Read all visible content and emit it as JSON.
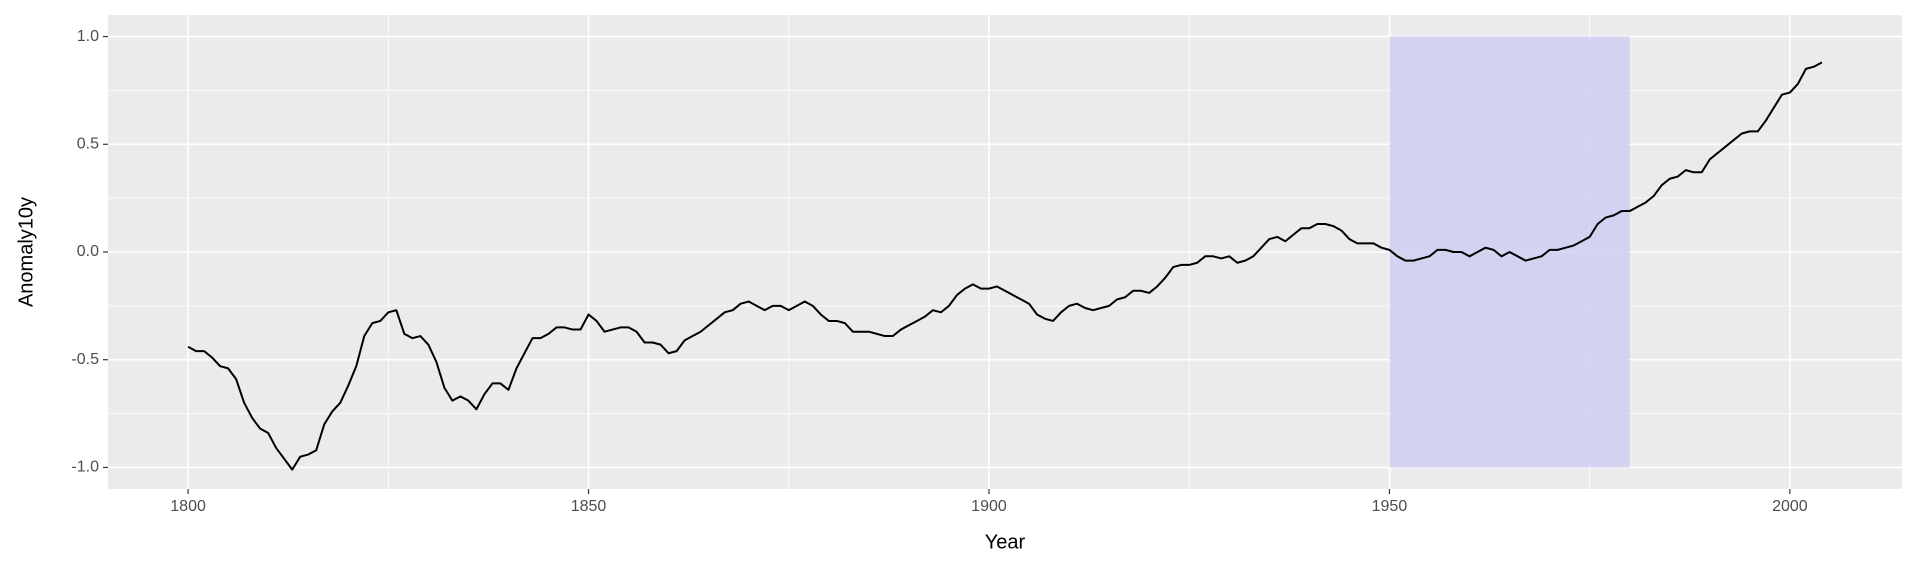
{
  "chart_data": {
    "type": "line",
    "x_label": "Year",
    "y_label": "Anomaly10y",
    "xlim": [
      1790,
      2014
    ],
    "ylim": [
      -1.1,
      1.1
    ],
    "xticks": [
      1800,
      1850,
      1900,
      1950,
      2000
    ],
    "yticks": [
      {
        "value": -1,
        "label": "-1.0"
      },
      {
        "value": -0.5,
        "label": "-0.5"
      },
      {
        "value": 0,
        "label": "0.0"
      },
      {
        "value": 0.5,
        "label": "0.5"
      },
      {
        "value": 1,
        "label": "1.0"
      }
    ],
    "grid": true,
    "panel_color": "#ebebeb",
    "shade": {
      "xmin": 1950,
      "xmax": 1980,
      "ymin": -1,
      "ymax": 1,
      "color": "#ccccf2"
    },
    "series": [
      {
        "color": "#000000",
        "x": [
          1800,
          1801,
          1802,
          1803,
          1804,
          1805,
          1806,
          1807,
          1808,
          1809,
          1810,
          1811,
          1812,
          1813,
          1814,
          1815,
          1816,
          1817,
          1818,
          1819,
          1820,
          1821,
          1822,
          1823,
          1824,
          1825,
          1826,
          1827,
          1828,
          1829,
          1830,
          1831,
          1832,
          1833,
          1834,
          1835,
          1836,
          1837,
          1838,
          1839,
          1840,
          1841,
          1842,
          1843,
          1844,
          1845,
          1846,
          1847,
          1848,
          1849,
          1850,
          1851,
          1852,
          1853,
          1854,
          1855,
          1856,
          1857,
          1858,
          1859,
          1860,
          1861,
          1862,
          1863,
          1864,
          1865,
          1866,
          1867,
          1868,
          1869,
          1870,
          1871,
          1872,
          1873,
          1874,
          1875,
          1876,
          1877,
          1878,
          1879,
          1880,
          1881,
          1882,
          1883,
          1884,
          1885,
          1886,
          1887,
          1888,
          1889,
          1890,
          1891,
          1892,
          1893,
          1894,
          1895,
          1896,
          1897,
          1898,
          1899,
          1900,
          1901,
          1902,
          1903,
          1904,
          1905,
          1906,
          1907,
          1908,
          1909,
          1910,
          1911,
          1912,
          1913,
          1914,
          1915,
          1916,
          1917,
          1918,
          1919,
          1920,
          1921,
          1922,
          1923,
          1924,
          1925,
          1926,
          1927,
          1928,
          1929,
          1930,
          1931,
          1932,
          1933,
          1934,
          1935,
          1936,
          1937,
          1938,
          1939,
          1940,
          1941,
          1942,
          1943,
          1944,
          1945,
          1946,
          1947,
          1948,
          1949,
          1950,
          1951,
          1952,
          1953,
          1954,
          1955,
          1956,
          1957,
          1958,
          1959,
          1960,
          1961,
          1962,
          1963,
          1964,
          1965,
          1966,
          1967,
          1968,
          1969,
          1970,
          1971,
          1972,
          1973,
          1974,
          1975,
          1976,
          1977,
          1978,
          1979,
          1980,
          1981,
          1982,
          1983,
          1984,
          1985,
          1986,
          1987,
          1988,
          1989,
          1990,
          1991,
          1992,
          1993,
          1994,
          1995,
          1996,
          1997,
          1998,
          1999,
          2000,
          2001,
          2002,
          2003,
          2004
        ],
        "values": [
          -0.44,
          -0.46,
          -0.46,
          -0.49,
          -0.53,
          -0.54,
          -0.59,
          -0.7,
          -0.77,
          -0.82,
          -0.84,
          -0.91,
          -0.96,
          -1.01,
          -0.95,
          -0.94,
          -0.92,
          -0.8,
          -0.74,
          -0.7,
          -0.62,
          -0.53,
          -0.39,
          -0.33,
          -0.32,
          -0.28,
          -0.27,
          -0.38,
          -0.4,
          -0.39,
          -0.43,
          -0.51,
          -0.63,
          -0.69,
          -0.67,
          -0.69,
          -0.73,
          -0.66,
          -0.61,
          -0.61,
          -0.64,
          -0.54,
          -0.47,
          -0.4,
          -0.4,
          -0.38,
          -0.35,
          -0.35,
          -0.36,
          -0.36,
          -0.29,
          -0.32,
          -0.37,
          -0.36,
          -0.35,
          -0.35,
          -0.37,
          -0.42,
          -0.42,
          -0.43,
          -0.47,
          -0.46,
          -0.41,
          -0.39,
          -0.37,
          -0.34,
          -0.31,
          -0.28,
          -0.27,
          -0.24,
          -0.23,
          -0.25,
          -0.27,
          -0.25,
          -0.25,
          -0.27,
          -0.25,
          -0.23,
          -0.25,
          -0.29,
          -0.32,
          -0.32,
          -0.33,
          -0.37,
          -0.37,
          -0.37,
          -0.38,
          -0.39,
          -0.39,
          -0.36,
          -0.34,
          -0.32,
          -0.3,
          -0.27,
          -0.28,
          -0.25,
          -0.2,
          -0.17,
          -0.15,
          -0.17,
          -0.17,
          -0.16,
          -0.18,
          -0.2,
          -0.22,
          -0.24,
          -0.29,
          -0.31,
          -0.32,
          -0.28,
          -0.25,
          -0.24,
          -0.26,
          -0.27,
          -0.26,
          -0.25,
          -0.22,
          -0.21,
          -0.18,
          -0.18,
          -0.19,
          -0.16,
          -0.12,
          -0.07,
          -0.06,
          -0.06,
          -0.05,
          -0.02,
          -0.02,
          -0.03,
          -0.02,
          -0.05,
          -0.04,
          -0.02,
          0.02,
          0.06,
          0.07,
          0.05,
          0.08,
          0.11,
          0.11,
          0.13,
          0.13,
          0.12,
          0.1,
          0.06,
          0.04,
          0.04,
          0.04,
          0.02,
          0.01,
          -0.02,
          -0.04,
          -0.04,
          -0.03,
          -0.02,
          0.01,
          0.01,
          0.0,
          0.0,
          -0.02,
          0.0,
          0.02,
          0.01,
          -0.02,
          0.0,
          -0.02,
          -0.04,
          -0.03,
          -0.02,
          0.01,
          0.01,
          0.02,
          0.03,
          0.05,
          0.07,
          0.13,
          0.16,
          0.17,
          0.19,
          0.19,
          0.21,
          0.23,
          0.26,
          0.31,
          0.34,
          0.35,
          0.38,
          0.37,
          0.37,
          0.43,
          0.46,
          0.49,
          0.52,
          0.55,
          0.56,
          0.56,
          0.61,
          0.67,
          0.73,
          0.74,
          0.78,
          0.85,
          0.86,
          0.88
        ]
      }
    ]
  }
}
